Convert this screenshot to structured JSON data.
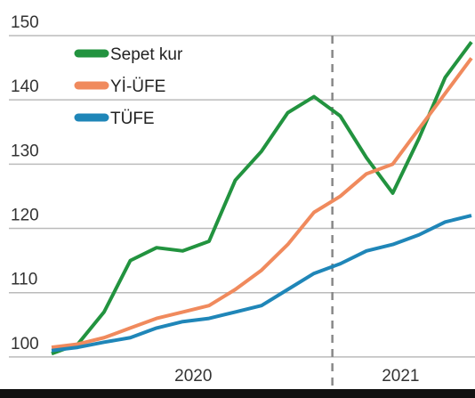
{
  "chart_data": {
    "type": "line",
    "x": [
      0,
      1,
      2,
      3,
      4,
      5,
      6,
      7,
      8,
      9,
      10,
      11,
      12,
      13,
      14,
      15,
      16
    ],
    "xlim": [
      0,
      16
    ],
    "xticks": [
      {
        "value": 5.4,
        "label": "2020"
      },
      {
        "value": 13.3,
        "label": "2021"
      }
    ],
    "reference_line_x": 10.7,
    "ylim": [
      95,
      150
    ],
    "yticks": [
      100,
      110,
      120,
      130,
      140,
      150
    ],
    "grid": true,
    "legend": "top-left",
    "series": [
      {
        "name": "Sepet kur",
        "color": "#22933f",
        "values": [
          100.5,
          102,
          107,
          115,
          117,
          116.5,
          118,
          127.5,
          132,
          138,
          140.5,
          137.5,
          131,
          125.5,
          134,
          143.5,
          149
        ]
      },
      {
        "name": "Yİ-ÜFE",
        "color": "#f08a5d",
        "values": [
          101.5,
          102,
          103,
          104.5,
          106,
          107,
          108,
          110.5,
          113.5,
          117.5,
          122.5,
          125,
          128.5,
          130,
          135.5,
          141,
          146.5
        ]
      },
      {
        "name": "TÜFE",
        "color": "#1f86b8",
        "values": [
          101,
          101.5,
          102.3,
          103,
          104.5,
          105.5,
          106,
          107,
          108,
          110.5,
          113,
          114.5,
          116.5,
          117.5,
          119,
          121,
          122
        ]
      }
    ]
  }
}
